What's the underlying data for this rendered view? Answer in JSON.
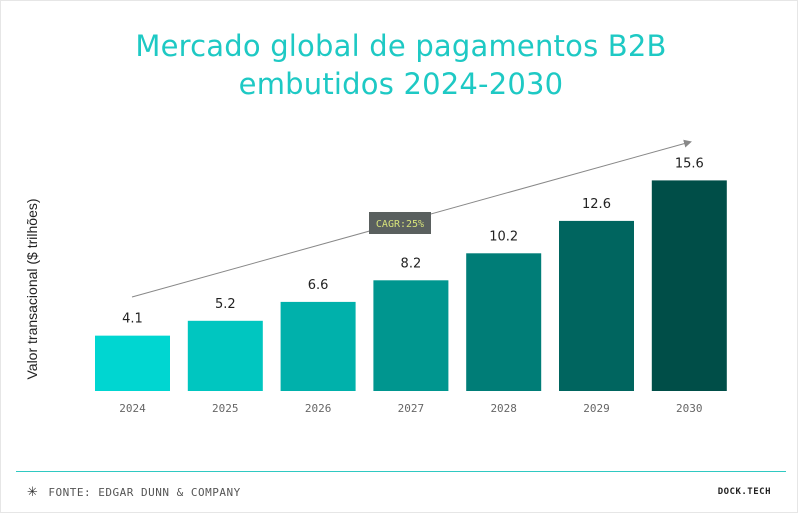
{
  "chart_data": {
    "type": "bar",
    "title_lines": [
      "Mercado global de pagamentos B2B",
      "embutidos 2024-2030"
    ],
    "ylabel": "Valor transacional ($ trilhões)",
    "xlabel": "",
    "categories": [
      "2024",
      "2025",
      "2026",
      "2027",
      "2028",
      "2029",
      "2030"
    ],
    "values": [
      4.1,
      5.2,
      6.6,
      8.2,
      10.2,
      12.6,
      15.6
    ],
    "value_labels": [
      "4.1",
      "5.2",
      "6.6",
      "8.2",
      "10.2",
      "12.6",
      "15.6"
    ],
    "bar_colors": [
      "#00d6d1",
      "#00c6c0",
      "#00b1ab",
      "#00968f",
      "#007d77",
      "#00655f",
      "#004e48"
    ],
    "annotation": "CAGR:25%",
    "grid": false,
    "legend": "none"
  },
  "footer": {
    "asterisk": "✳",
    "source": "FONTE: EDGAR DUNN & COMPANY",
    "brand": "DOCK.TECH"
  },
  "colors": {
    "title": "#1ec9c4",
    "rule": "#2fc9c2",
    "badge_bg": "#5a605f",
    "badge_text": "#d6e27a",
    "arrow": "#888888"
  }
}
